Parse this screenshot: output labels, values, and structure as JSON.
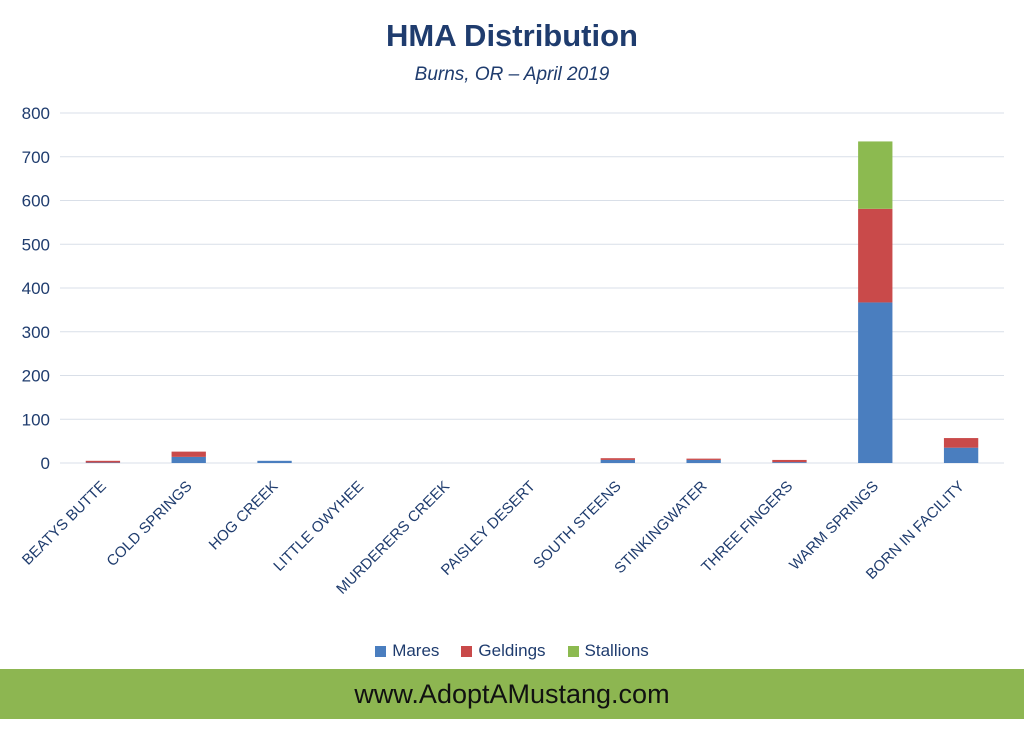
{
  "chart_data": {
    "type": "bar",
    "stacked": true,
    "title": "HMA Distribution",
    "subtitle": "Burns, OR – April 2019",
    "xlabel": "",
    "ylabel": "",
    "ylim": [
      0,
      800
    ],
    "yticks": [
      0,
      100,
      200,
      300,
      400,
      500,
      600,
      700,
      800
    ],
    "grid": true,
    "legend_position": "bottom",
    "categories": [
      "BEATYS BUTTE",
      "COLD SPRINGS",
      "HOG CREEK",
      "LITTLE OWYHEE",
      "MURDERERS CREEK",
      "PAISLEY DESERT",
      "SOUTH STEENS",
      "STINKINGWATER",
      "THREE FINGERS",
      "WARM SPRINGS",
      "BORN IN FACILITY"
    ],
    "series": [
      {
        "name": "Mares",
        "color": "#4a7ebf",
        "values": [
          1,
          14,
          5,
          0,
          0,
          0,
          7,
          7,
          2,
          367,
          35
        ]
      },
      {
        "name": "Geldings",
        "color": "#c94a4a",
        "values": [
          4,
          12,
          0,
          0,
          0,
          0,
          4,
          3,
          5,
          214,
          22
        ]
      },
      {
        "name": "Stallions",
        "color": "#8cba50",
        "values": [
          0,
          0,
          0,
          0,
          0,
          0,
          0,
          0,
          0,
          154,
          0
        ]
      }
    ]
  },
  "footer": {
    "text": "www.AdoptAMustang.com"
  },
  "colors": {
    "title": "#1f3c6e",
    "banner": "#8db651",
    "grid": "#d9dfe8"
  }
}
